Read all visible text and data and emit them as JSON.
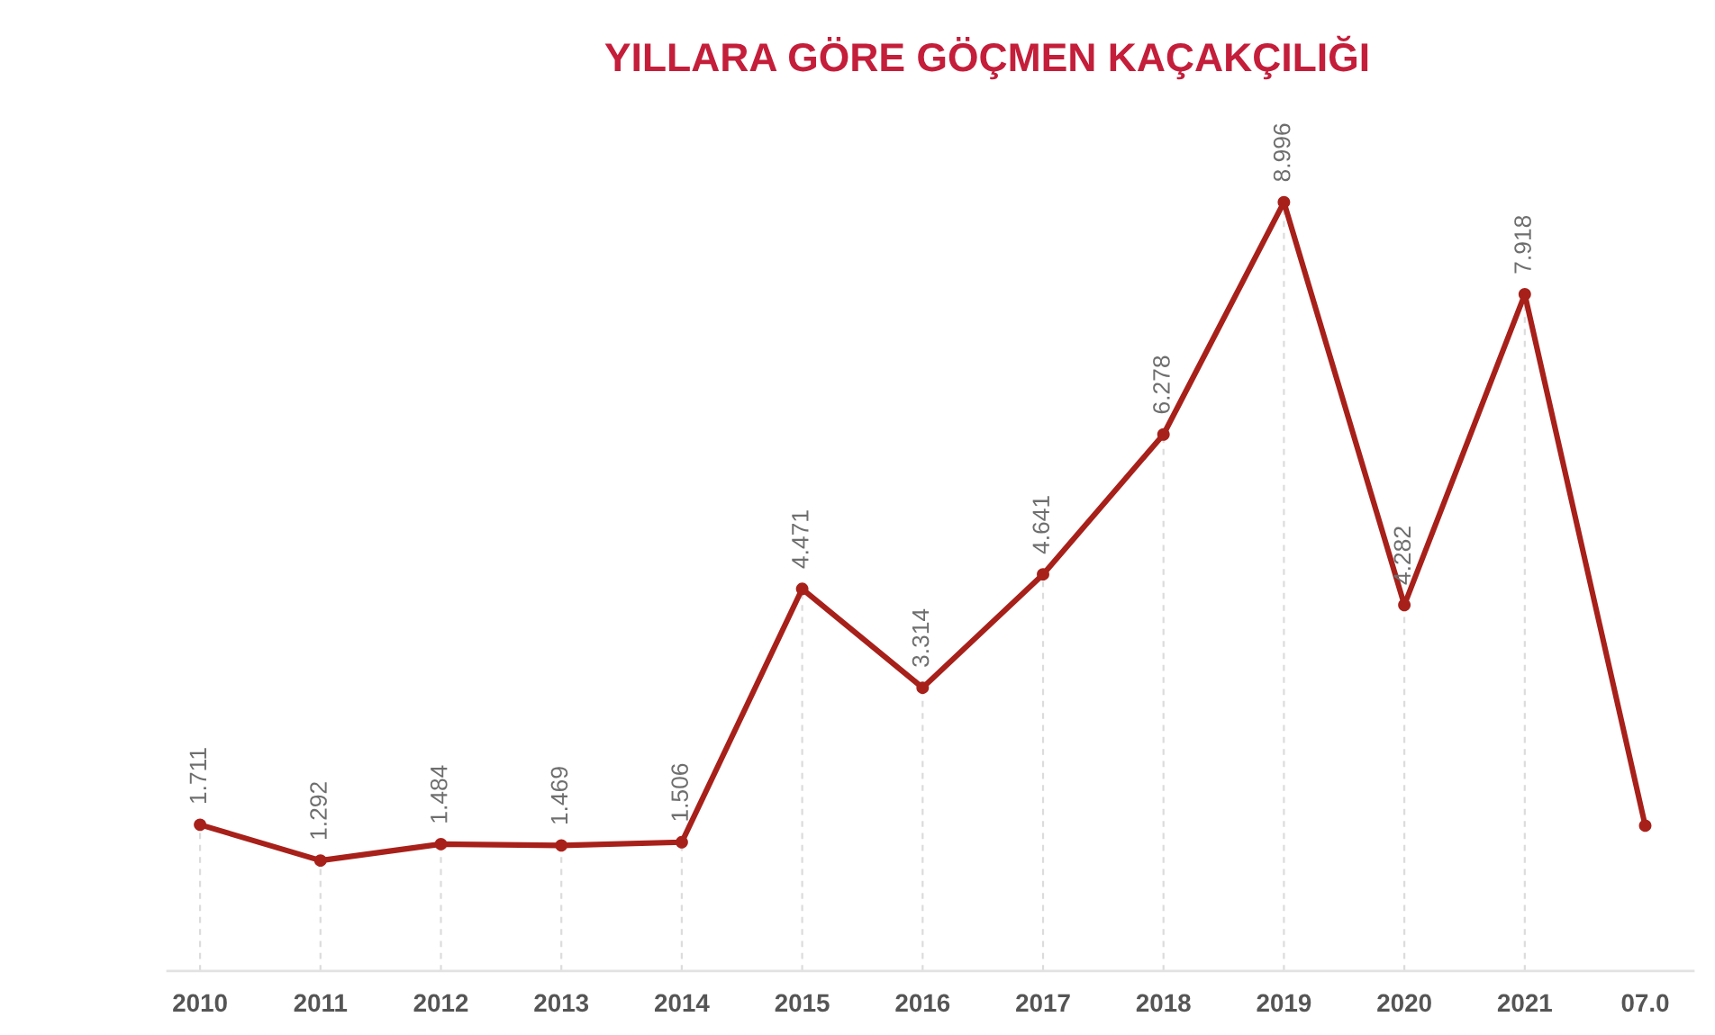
{
  "chart_data": {
    "type": "line",
    "title": "YILLARA GÖRE GÖÇMEN KAÇAKÇILIĞI",
    "categories": [
      "2010",
      "2011",
      "2012",
      "2013",
      "2014",
      "2015",
      "2016",
      "2017",
      "2018",
      "2019",
      "2020",
      "2021",
      "07.0"
    ],
    "series": [
      {
        "color": "#a8201a",
        "values": [
          1.711,
          1.292,
          1.484,
          1.469,
          1.506,
          4.471,
          3.314,
          4.641,
          6.278,
          8.996,
          4.282,
          7.918,
          1.7
        ],
        "value_labels": [
          "1.711",
          "1.292",
          "1.484",
          "1.469",
          "1.506",
          "4.471",
          "3.314",
          "4.641",
          "6.278",
          "8.996",
          "4.282",
          "7.918",
          null
        ]
      }
    ],
    "grid": "x",
    "marker": "circle",
    "line_style": "solid"
  }
}
